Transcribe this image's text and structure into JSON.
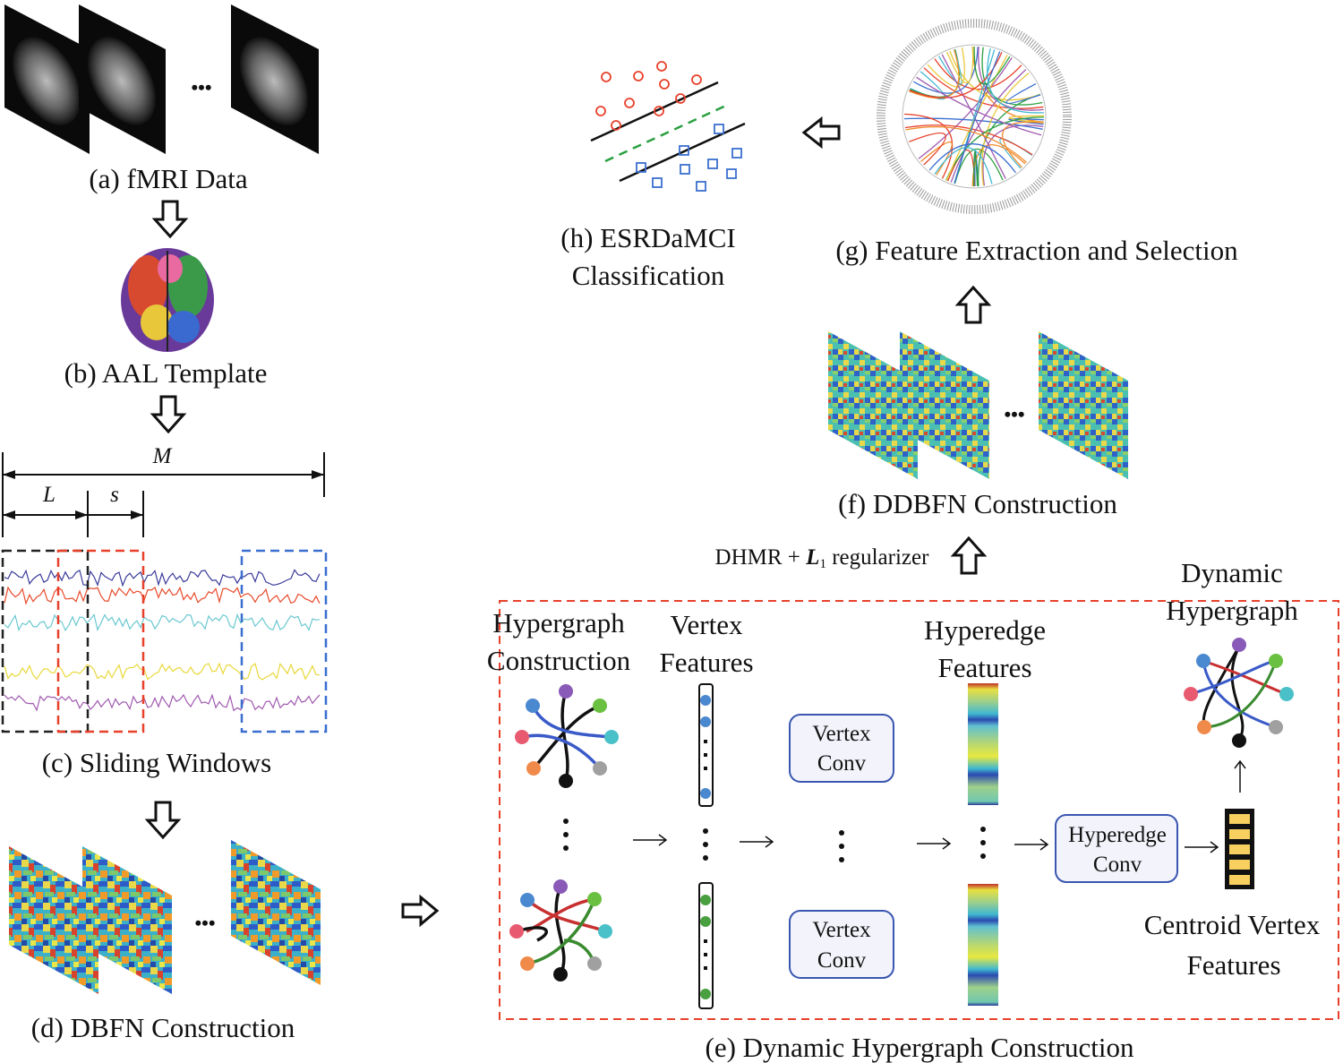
{
  "panels": {
    "a": "(a) fMRI Data",
    "b": "(b) AAL Template",
    "c": "(c) Sliding Windows",
    "d": "(d) DBFN Construction",
    "e": "(e) Dynamic Hypergraph Construction",
    "f": "(f) DDBFN Construction",
    "g": "(g) Feature Extraction and Selection",
    "h1": "(h) ESRDaMCI",
    "h2": "Classification"
  },
  "sliding": {
    "M": "M",
    "L": "L",
    "s": "s"
  },
  "regularizer": {
    "prefix": "DHMR + ",
    "L": "L",
    "sub": "1",
    "suffix": " regularizer"
  },
  "hypergraph": {
    "construction1": "Hypergraph",
    "construction2": "Construction",
    "vertex1": "Vertex",
    "vertex2": "Features",
    "hyperedge1": "Hyperedge",
    "hyperedge2": "Features",
    "dynamic1": "Dynamic",
    "dynamic2": "Hypergraph",
    "vconv1": "Vertex",
    "vconv2": "Conv",
    "hconv1": "Hyperedge",
    "hconv2": "Conv",
    "centroid1": "Centroid Vertex",
    "centroid2": "Features"
  },
  "ellipsis": "•••",
  "colors": {
    "red_dashed": "#e8402a",
    "blue_box": "#3a56b0",
    "window_black": "#222222",
    "window_red": "#e8402a",
    "window_blue": "#3a6fd0"
  }
}
